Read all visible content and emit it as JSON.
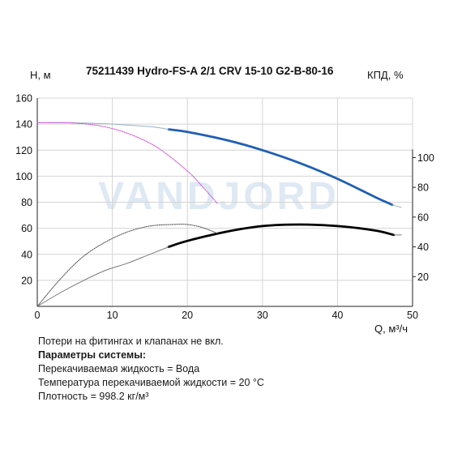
{
  "chart_data": {
    "type": "line",
    "title": "75211439 Hydro-FS-A 2/1 CRV 15-10 G2-B-80-16",
    "ylabel_left": "Н, м",
    "ylabel_right": "КПД, %",
    "xlabel": "Q, м³/ч",
    "watermark": "VANDJORD",
    "xlim": [
      0,
      50
    ],
    "ylim_left": [
      0,
      160
    ],
    "ylim_right": [
      0,
      140
    ],
    "xticks": [
      0,
      10,
      20,
      30,
      40,
      50
    ],
    "yticks_left": [
      20,
      40,
      60,
      80,
      100,
      120,
      140,
      160
    ],
    "yticks_right": [
      20,
      40,
      60,
      80,
      100
    ],
    "grid": true,
    "series": [
      {
        "axis": "left",
        "color": "#1f5fb5",
        "style": "solid-thick",
        "x": [
          17.5,
          20,
          25,
          30,
          35,
          40,
          45,
          47.3
        ],
        "y": [
          136,
          134,
          128,
          120,
          110,
          98,
          84,
          78
        ]
      },
      {
        "axis": "left",
        "color": "#9bb0c8",
        "style": "thin",
        "x": [
          0,
          5,
          10,
          15,
          17.5
        ],
        "y": [
          141,
          141,
          140,
          138,
          136
        ]
      },
      {
        "axis": "left",
        "color": "#9bb0c8",
        "style": "thin",
        "x": [
          47.3,
          48.5
        ],
        "y": [
          78,
          76
        ]
      },
      {
        "axis": "left",
        "color": "#d24fd6",
        "style": "thin-dotted",
        "x": [
          0,
          4,
          8,
          12,
          16,
          20,
          22,
          24
        ],
        "y": [
          141,
          141,
          139,
          133,
          122,
          104,
          92,
          79
        ]
      },
      {
        "axis": "right",
        "color": "#000000",
        "style": "solid-thick",
        "x": [
          17.5,
          20,
          25,
          30,
          35,
          40,
          45,
          47.5
        ],
        "y": [
          40,
          44,
          50,
          54,
          55,
          54,
          51,
          48
        ]
      },
      {
        "axis": "right",
        "color": "#777777",
        "style": "thin",
        "x": [
          0,
          3,
          6,
          9,
          12,
          15,
          17.5
        ],
        "y": [
          0,
          9,
          17,
          24,
          29,
          35,
          40
        ]
      },
      {
        "axis": "right",
        "color": "#777777",
        "style": "thin",
        "x": [
          47.5,
          48.5
        ],
        "y": [
          48,
          48
        ]
      },
      {
        "axis": "right",
        "color": "#555555",
        "style": "thin-dotted",
        "x": [
          0,
          3,
          6,
          9,
          12,
          15,
          18,
          20,
          22,
          24
        ],
        "y": [
          0,
          18,
          33,
          43,
          50,
          54,
          55,
          55,
          53,
          49
        ]
      }
    ]
  },
  "notes": {
    "line1": "Потери на фитингах и клапанах не вкл.",
    "heading": "Параметры системы:",
    "line2": "Перекачиваемая жидкость = Вода",
    "line3": "Температура перекачиваемой жидкости = 20 °C",
    "line4": "Плотность = 998.2 кг/м³"
  }
}
